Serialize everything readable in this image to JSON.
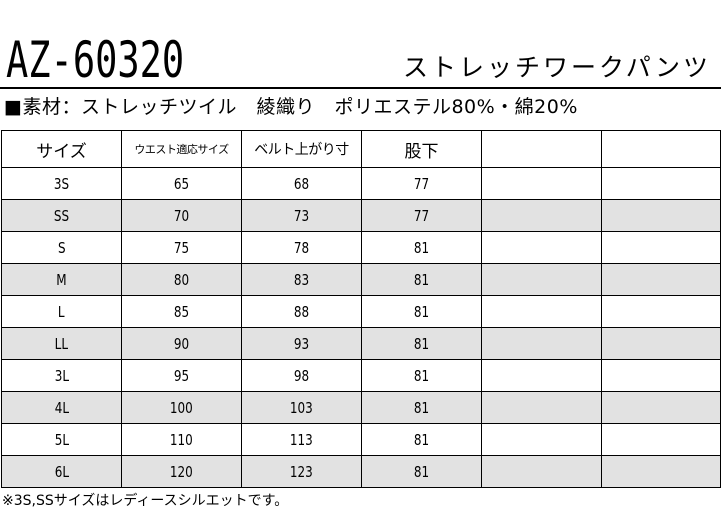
{
  "header": {
    "model_code": "AZ-60320",
    "product_name": "ストレッチワークパンツ"
  },
  "material_line": "■素材：ストレッチツイル　綾織り　ポリエステル80%・綿20%",
  "table": {
    "headers": [
      "サイズ",
      "ウエスト適応サイズ",
      "ベルト上がり寸",
      "股下",
      "",
      ""
    ],
    "rows": [
      {
        "size": "3S",
        "waist": "65",
        "belt": "68",
        "inseam": "77"
      },
      {
        "size": "SS",
        "waist": "70",
        "belt": "73",
        "inseam": "77"
      },
      {
        "size": "S",
        "waist": "75",
        "belt": "78",
        "inseam": "81"
      },
      {
        "size": "M",
        "waist": "80",
        "belt": "83",
        "inseam": "81"
      },
      {
        "size": "L",
        "waist": "85",
        "belt": "88",
        "inseam": "81"
      },
      {
        "size": "LL",
        "waist": "90",
        "belt": "93",
        "inseam": "81"
      },
      {
        "size": "3L",
        "waist": "95",
        "belt": "98",
        "inseam": "81"
      },
      {
        "size": "4L",
        "waist": "100",
        "belt": "103",
        "inseam": "81"
      },
      {
        "size": "5L",
        "waist": "110",
        "belt": "113",
        "inseam": "81"
      },
      {
        "size": "6L",
        "waist": "120",
        "belt": "123",
        "inseam": "81"
      }
    ],
    "shade_color": "#e2e2e2"
  },
  "footnote": "※3S,SSサイズはレディースシルエットです。"
}
